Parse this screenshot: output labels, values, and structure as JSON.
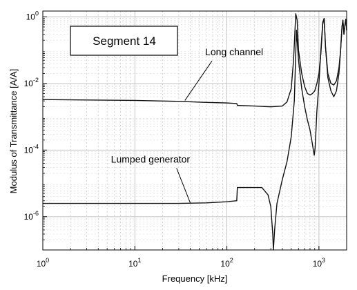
{
  "chart_data": {
    "type": "line",
    "x_scale": "log",
    "y_scale": "log",
    "xlabel": "Frequency [kHz]",
    "ylabel": "Modulus of Transmittance [A/A]",
    "xlim": [
      1,
      2000
    ],
    "ylim": [
      1e-07,
      1.5
    ],
    "grid": true,
    "x_ticks": [
      {
        "base": "10",
        "exp": "0",
        "value": 1
      },
      {
        "base": "10",
        "exp": "1",
        "value": 10
      },
      {
        "base": "10",
        "exp": "2",
        "value": 100
      },
      {
        "base": "10",
        "exp": "3",
        "value": 1000
      }
    ],
    "y_ticks": [
      {
        "base": "10",
        "exp": "0",
        "value": 1
      },
      {
        "base": "10",
        "exp": "-2",
        "value": 0.01
      },
      {
        "base": "10",
        "exp": "-4",
        "value": 0.0001
      },
      {
        "base": "10",
        "exp": "-6",
        "value": 1e-06
      }
    ],
    "legend_box": "Segment 14",
    "annotations": [
      {
        "text": "Long channel",
        "target_x": 35,
        "target_y": 0.0031,
        "text_x": 58,
        "text_y": 0.07
      },
      {
        "text": "Lumped generator",
        "target_x": 40,
        "target_y": 2.6e-06,
        "text_x": 5.5,
        "text_y": 4.2e-05
      }
    ],
    "series": [
      {
        "x": [
          1,
          3,
          10,
          30,
          60,
          100,
          128,
          130,
          200,
          300,
          400,
          450,
          500,
          530,
          560,
          580,
          600,
          650,
          700,
          750,
          800,
          850,
          900,
          950,
          1000,
          1050,
          1100,
          1140,
          1180,
          1250,
          1350,
          1450,
          1550,
          1650,
          1720,
          1780,
          1820,
          1870,
          1920,
          1960,
          2000
        ],
        "y": [
          0.0033,
          0.0032,
          0.0031,
          0.0029,
          0.0027,
          0.0026,
          0.0025,
          0.0022,
          0.0021,
          0.002,
          0.0021,
          0.0028,
          0.007,
          0.05,
          1.25,
          0.8,
          0.1,
          0.02,
          0.008,
          0.005,
          0.0045,
          0.005,
          0.006,
          0.01,
          0.02,
          0.08,
          0.6,
          0.9,
          0.12,
          0.02,
          0.01,
          0.009,
          0.012,
          0.03,
          0.1,
          0.5,
          0.8,
          0.3,
          0.6,
          0.85,
          0.4
        ]
      },
      {
        "x": [
          1,
          3,
          10,
          30,
          60,
          100,
          125,
          128,
          130,
          200,
          240,
          245,
          280,
          300,
          315,
          320,
          330,
          350,
          400,
          450,
          500,
          540,
          570,
          600,
          650,
          700,
          750,
          800,
          850,
          870,
          890,
          910,
          950,
          1000,
          1050,
          1100,
          1140,
          1180,
          1250,
          1350,
          1450,
          1550,
          1650,
          1720,
          1780,
          1820,
          1870,
          1920,
          1960,
          2000
        ],
        "y": [
          2.5e-06,
          2.5e-06,
          2.5e-06,
          2.5e-06,
          2.6e-06,
          2.8e-06,
          3e-06,
          3e-06,
          7.5e-06,
          7.5e-06,
          7.5e-06,
          7e-06,
          4.5e-06,
          2e-06,
          3e-07,
          7e-08,
          4e-07,
          2.5e-06,
          1.3e-05,
          4.5e-05,
          0.00025,
          0.003,
          0.4,
          0.05,
          0.007,
          0.002,
          0.0008,
          0.0004,
          0.00015,
          0.0001,
          7e-05,
          0.00012,
          0.0015,
          0.01,
          0.1,
          0.7,
          0.9,
          0.12,
          0.015,
          0.006,
          0.004,
          0.006,
          0.02,
          0.1,
          0.5,
          0.8,
          0.3,
          0.6,
          0.85,
          0.4
        ]
      }
    ]
  }
}
